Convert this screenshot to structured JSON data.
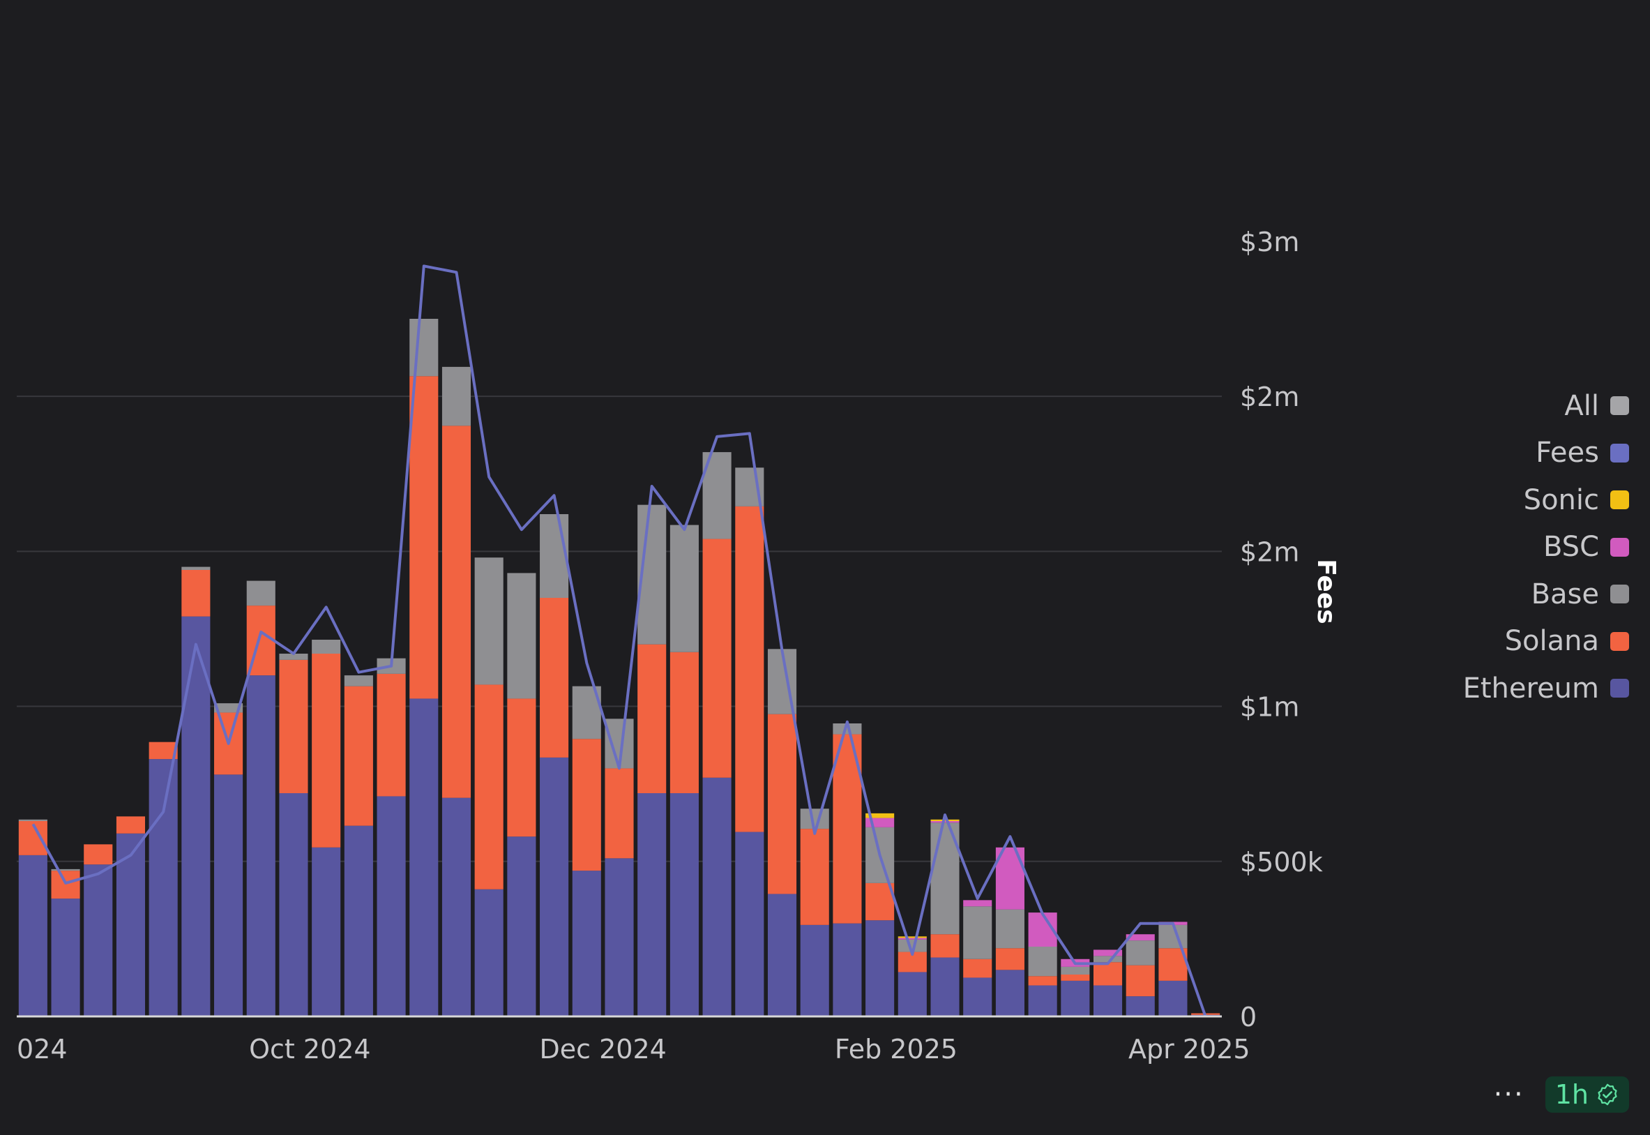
{
  "chart_data": {
    "type": "bar",
    "stacked": true,
    "title": "",
    "xlabel": "",
    "ylabel": "Fees",
    "ylim": [
      0,
      3250000
    ],
    "grid": true,
    "legend_position": "right",
    "y_ticks": [
      {
        "value": 0,
        "label": "0"
      },
      {
        "value": 500000,
        "label": "$500k"
      },
      {
        "value": 1000000,
        "label": "$1m"
      },
      {
        "value": 1500000,
        "label": "$2m"
      },
      {
        "value": 2000000,
        "label": "$2m"
      },
      {
        "value": 2500000,
        "label": "$3m"
      }
    ],
    "x_tick_labels": [
      {
        "index": 0,
        "label": "024"
      },
      {
        "index": 8.5,
        "label": "Oct 2024"
      },
      {
        "index": 17.5,
        "label": "Dec 2024"
      },
      {
        "index": 26.5,
        "label": "Feb 2025"
      },
      {
        "index": 35.5,
        "label": "Apr 2025"
      }
    ],
    "series": [
      {
        "name": "Ethereum",
        "color": "#5856a0",
        "values": [
          520000,
          380000,
          490000,
          590000,
          830000,
          1290000,
          780000,
          1100000,
          720000,
          545000,
          615000,
          710000,
          1025000,
          705000,
          410000,
          580000,
          835000,
          470000,
          510000,
          720000,
          720000,
          770000,
          595000,
          395000,
          295000,
          300000,
          310000,
          143000,
          190000,
          125000,
          150000,
          100000,
          115000,
          100000,
          65000,
          115000,
          5000
        ]
      },
      {
        "name": "Solana",
        "color": "#f26341",
        "values": [
          110000,
          90000,
          65000,
          55000,
          55000,
          150000,
          200000,
          225000,
          430000,
          625000,
          450000,
          395000,
          1040000,
          1200000,
          660000,
          445000,
          515000,
          425000,
          290000,
          480000,
          455000,
          770000,
          1050000,
          580000,
          310000,
          610000,
          120000,
          65000,
          75000,
          60000,
          70000,
          30000,
          20000,
          75000,
          100000,
          105000,
          5000
        ]
      },
      {
        "name": "Base",
        "color": "#8f8f92",
        "values": [
          5000,
          5000,
          0,
          0,
          0,
          10000,
          30000,
          80000,
          20000,
          45000,
          35000,
          50000,
          185000,
          190000,
          410000,
          405000,
          270000,
          170000,
          160000,
          450000,
          410000,
          280000,
          125000,
          210000,
          65000,
          35000,
          180000,
          40000,
          360000,
          170000,
          125000,
          95000,
          25000,
          20000,
          80000,
          75000,
          0
        ]
      },
      {
        "name": "BSC",
        "color": "#d15bbf",
        "values": [
          0,
          0,
          0,
          0,
          0,
          0,
          0,
          0,
          0,
          0,
          0,
          0,
          0,
          0,
          0,
          0,
          0,
          0,
          0,
          0,
          0,
          0,
          0,
          0,
          0,
          0,
          30000,
          5000,
          5000,
          20000,
          200000,
          110000,
          25000,
          20000,
          20000,
          10000,
          0
        ]
      },
      {
        "name": "Sonic",
        "color": "#f2c014",
        "values": [
          0,
          0,
          0,
          0,
          0,
          0,
          0,
          0,
          0,
          0,
          0,
          0,
          0,
          0,
          0,
          0,
          0,
          0,
          0,
          0,
          0,
          0,
          0,
          0,
          0,
          0,
          15000,
          5000,
          5000,
          0,
          0,
          0,
          0,
          0,
          0,
          0,
          0
        ]
      }
    ],
    "line_series": {
      "name": "Fees",
      "color": "#6a6fc2",
      "values": [
        620000,
        430000,
        460000,
        520000,
        660000,
        1200000,
        880000,
        1240000,
        1170000,
        1320000,
        1110000,
        1130000,
        2420000,
        2400000,
        1740000,
        1570000,
        1680000,
        1140000,
        800000,
        1710000,
        1570000,
        1870000,
        1880000,
        1180000,
        590000,
        950000,
        520000,
        200000,
        650000,
        380000,
        580000,
        330000,
        170000,
        170000,
        300000,
        300000,
        0
      ]
    },
    "legend": [
      {
        "label": "All",
        "color": "#a5a5a8"
      },
      {
        "label": "Fees",
        "color": "#6a6fc2"
      },
      {
        "label": "Sonic",
        "color": "#f2c014"
      },
      {
        "label": "BSC",
        "color": "#d15bbf"
      },
      {
        "label": "Base",
        "color": "#8f8f92"
      },
      {
        "label": "Solana",
        "color": "#f26341"
      },
      {
        "label": "Ethereum",
        "color": "#5856a0"
      }
    ]
  },
  "footer": {
    "more_label": "···",
    "refresh_label": "1h"
  },
  "icons": {
    "more": "ellipsis-icon",
    "refresh_status": "check-badge-icon"
  }
}
